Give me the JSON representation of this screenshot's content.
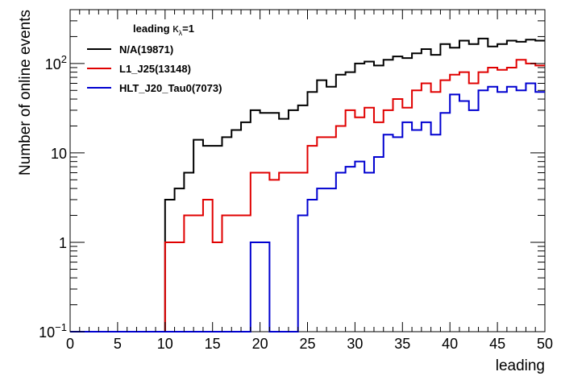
{
  "chart_data": {
    "type": "line",
    "title": "",
    "xlabel": "leading",
    "ylabel": "Number of online events",
    "xlim": [
      0,
      50
    ],
    "ylim": [
      0.1,
      400
    ],
    "yscale": "log",
    "x_ticks": [
      "0",
      "5",
      "10",
      "15",
      "20",
      "25",
      "30",
      "35",
      "40",
      "45",
      "50"
    ],
    "y_ticks": [
      {
        "value": 0.1,
        "base": "10",
        "exp": "−1"
      },
      {
        "value": 1,
        "label": "1"
      },
      {
        "value": 10,
        "label": "10"
      },
      {
        "value": 100,
        "base": "10",
        "exp": "2"
      }
    ],
    "bin_edges": [
      0,
      1,
      2,
      3,
      4,
      5,
      6,
      7,
      8,
      9,
      10,
      11,
      12,
      13,
      14,
      15,
      16,
      17,
      18,
      19,
      20,
      21,
      22,
      23,
      24,
      25,
      26,
      27,
      28,
      29,
      30,
      31,
      32,
      33,
      34,
      35,
      36,
      37,
      38,
      39,
      40,
      41,
      42,
      43,
      44,
      45,
      46,
      47,
      48,
      49,
      50
    ],
    "legend": {
      "header": {
        "text": "leading",
        "kappa": "κ",
        "sub": "λ",
        "tail": "=1"
      },
      "position": "top-left"
    },
    "series": [
      {
        "name": "N/A(19871)",
        "color": "#000000",
        "values": [
          0.1,
          0.1,
          0.1,
          0.1,
          0.1,
          0.1,
          0.1,
          0.1,
          0.1,
          0.1,
          3,
          4,
          6,
          14,
          12,
          12,
          15,
          18,
          22,
          30,
          28,
          28,
          24,
          30,
          34,
          48,
          65,
          55,
          75,
          80,
          100,
          105,
          95,
          110,
          120,
          115,
          130,
          145,
          125,
          165,
          150,
          180,
          165,
          190,
          155,
          165,
          180,
          175,
          185,
          180
        ]
      },
      {
        "name": "L1_J25(13148)",
        "color": "#e00000",
        "values": [
          0.1,
          0.1,
          0.1,
          0.1,
          0.1,
          0.1,
          0.1,
          0.1,
          0.1,
          0.1,
          1,
          1,
          2,
          2,
          3,
          1,
          2,
          2,
          2,
          6,
          6,
          5,
          6,
          6,
          6,
          12,
          15,
          15,
          20,
          30,
          25,
          32,
          22,
          30,
          40,
          32,
          50,
          60,
          48,
          65,
          75,
          80,
          60,
          80,
          90,
          85,
          90,
          110,
          100,
          95
        ]
      },
      {
        "name": "HLT_J20_Tau0(7073)",
        "color": "#0000d0",
        "values": [
          0.1,
          0.1,
          0.1,
          0.1,
          0.1,
          0.1,
          0.1,
          0.1,
          0.1,
          0.1,
          0.1,
          0.1,
          0.1,
          0.1,
          0.1,
          0.1,
          0.1,
          0.1,
          0.1,
          1,
          1,
          0.1,
          0.1,
          0.1,
          2,
          3,
          4,
          4,
          6,
          7,
          8,
          6,
          9,
          16,
          15,
          22,
          18,
          22,
          16,
          28,
          45,
          38,
          30,
          50,
          55,
          48,
          55,
          50,
          60,
          48
        ]
      }
    ]
  }
}
